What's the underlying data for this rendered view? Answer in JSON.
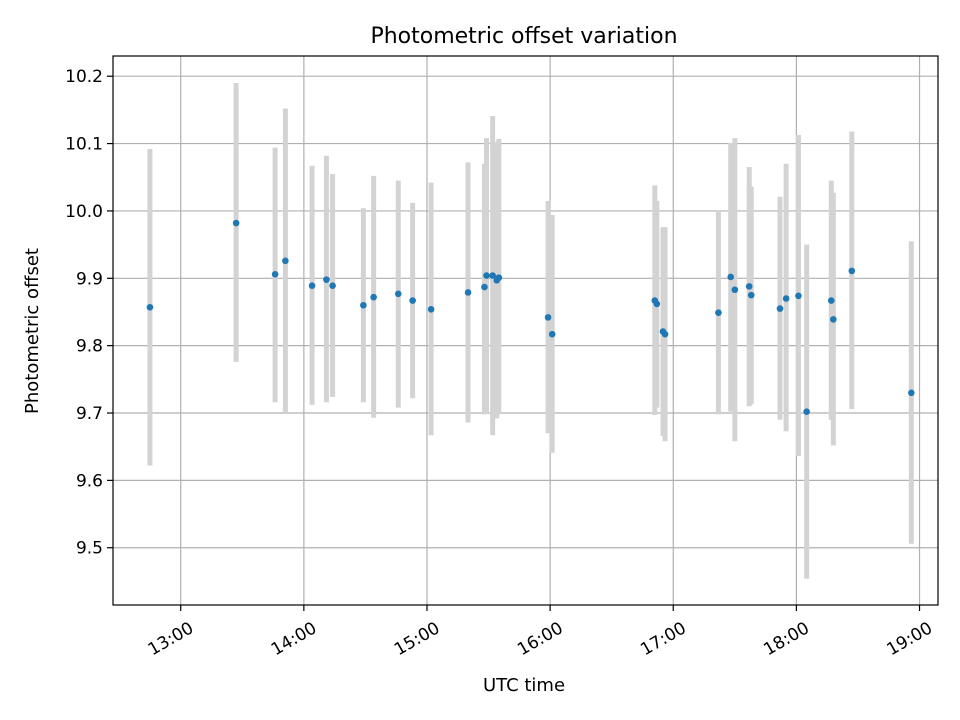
{
  "chart_data": {
    "type": "scatter",
    "title": "Photometric offset variation",
    "xlabel": "UTC time",
    "ylabel": "Photometric offset",
    "x_unit": "time of day (HH:MM UTC)",
    "xlim": [
      "12:27",
      "19:09"
    ],
    "ylim": [
      9.415,
      10.23
    ],
    "x_ticks": [
      "13:00",
      "14:00",
      "15:00",
      "16:00",
      "17:00",
      "18:00",
      "19:00"
    ],
    "y_ticks": [
      9.5,
      9.6,
      9.7,
      9.8,
      9.9,
      10.0,
      10.1,
      10.2
    ],
    "grid": true,
    "legend": "none",
    "colors": {
      "marker": "#1f77b4",
      "errorbar": "#d3d3d3"
    },
    "series": [
      {
        "points": [
          {
            "x": "12:45",
            "y": 9.857,
            "ylow": 9.622,
            "yhigh": 10.092
          },
          {
            "x": "13:27",
            "y": 9.982,
            "ylow": 9.776,
            "yhigh": 10.19
          },
          {
            "x": "13:46",
            "y": 9.906,
            "ylow": 9.716,
            "yhigh": 10.094
          },
          {
            "x": "13:51",
            "y": 9.926,
            "ylow": 9.7,
            "yhigh": 10.152
          },
          {
            "x": "14:04",
            "y": 9.889,
            "ylow": 9.712,
            "yhigh": 10.067
          },
          {
            "x": "14:11",
            "y": 9.898,
            "ylow": 9.716,
            "yhigh": 10.082
          },
          {
            "x": "14:14",
            "y": 9.889,
            "ylow": 9.724,
            "yhigh": 10.055
          },
          {
            "x": "14:29",
            "y": 9.86,
            "ylow": 9.716,
            "yhigh": 10.004
          },
          {
            "x": "14:34",
            "y": 9.872,
            "ylow": 9.693,
            "yhigh": 10.052
          },
          {
            "x": "14:46",
            "y": 9.877,
            "ylow": 9.708,
            "yhigh": 10.045
          },
          {
            "x": "14:53",
            "y": 9.867,
            "ylow": 9.722,
            "yhigh": 10.012
          },
          {
            "x": "15:02",
            "y": 9.854,
            "ylow": 9.667,
            "yhigh": 10.042
          },
          {
            "x": "15:20",
            "y": 9.879,
            "ylow": 9.686,
            "yhigh": 10.072
          },
          {
            "x": "15:28",
            "y": 9.887,
            "ylow": 9.698,
            "yhigh": 10.07
          },
          {
            "x": "15:29",
            "y": 9.904,
            "ylow": 9.7,
            "yhigh": 10.108
          },
          {
            "x": "15:32",
            "y": 9.904,
            "ylow": 9.667,
            "yhigh": 10.141
          },
          {
            "x": "15:34",
            "y": 9.897,
            "ylow": 9.692,
            "yhigh": 10.102
          },
          {
            "x": "15:35",
            "y": 9.901,
            "ylow": 9.698,
            "yhigh": 10.107
          },
          {
            "x": "15:59",
            "y": 9.842,
            "ylow": 9.67,
            "yhigh": 10.015
          },
          {
            "x": "16:01",
            "y": 9.817,
            "ylow": 9.641,
            "yhigh": 9.994
          },
          {
            "x": "16:51",
            "y": 9.867,
            "ylow": 9.697,
            "yhigh": 10.038
          },
          {
            "x": "16:52",
            "y": 9.862,
            "ylow": 9.708,
            "yhigh": 10.015
          },
          {
            "x": "16:55",
            "y": 9.821,
            "ylow": 9.666,
            "yhigh": 9.976
          },
          {
            "x": "16:56",
            "y": 9.817,
            "ylow": 9.658,
            "yhigh": 9.976
          },
          {
            "x": "17:22",
            "y": 9.849,
            "ylow": 9.698,
            "yhigh": 10.0
          },
          {
            "x": "17:28",
            "y": 9.902,
            "ylow": 9.702,
            "yhigh": 10.101
          },
          {
            "x": "17:30",
            "y": 9.883,
            "ylow": 9.658,
            "yhigh": 10.108
          },
          {
            "x": "17:37",
            "y": 9.888,
            "ylow": 9.71,
            "yhigh": 10.065
          },
          {
            "x": "17:38",
            "y": 9.875,
            "ylow": 9.713,
            "yhigh": 10.036
          },
          {
            "x": "17:52",
            "y": 9.855,
            "ylow": 9.69,
            "yhigh": 10.021
          },
          {
            "x": "17:55",
            "y": 9.87,
            "ylow": 9.673,
            "yhigh": 10.07
          },
          {
            "x": "18:01",
            "y": 9.874,
            "ylow": 9.636,
            "yhigh": 10.113
          },
          {
            "x": "18:05",
            "y": 9.702,
            "ylow": 9.454,
            "yhigh": 9.95
          },
          {
            "x": "18:17",
            "y": 9.867,
            "ylow": 9.69,
            "yhigh": 10.045
          },
          {
            "x": "18:18",
            "y": 9.839,
            "ylow": 9.652,
            "yhigh": 10.027
          },
          {
            "x": "18:27",
            "y": 9.911,
            "ylow": 9.706,
            "yhigh": 10.118
          },
          {
            "x": "18:56",
            "y": 9.73,
            "ylow": 9.506,
            "yhigh": 9.955
          }
        ]
      }
    ]
  }
}
